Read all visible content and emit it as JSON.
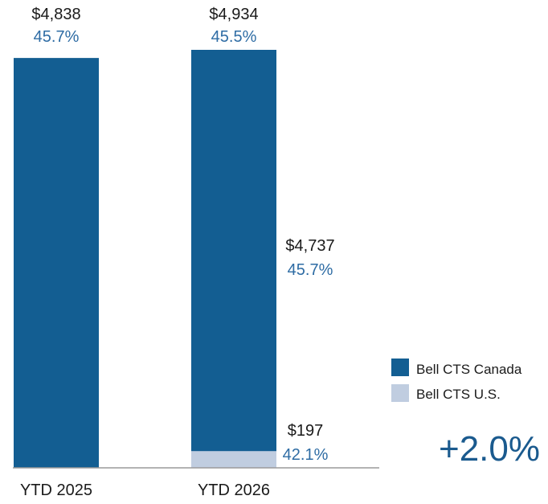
{
  "chart_data": {
    "type": "bar",
    "stacked": true,
    "categories": [
      "YTD 2025",
      "YTD 2026"
    ],
    "series": [
      {
        "name": "Bell CTS Canada",
        "color": "#135e92",
        "values": [
          4838,
          4737
        ],
        "pct_labels": [
          "",
          "45.7%"
        ]
      },
      {
        "name": "Bell CTS U.S.",
        "color": "#c0cde0",
        "values": [
          0,
          197
        ],
        "pct_labels": [
          "",
          "42.1%"
        ]
      }
    ],
    "totals": [
      {
        "value": "$4,838",
        "pct": "45.7%"
      },
      {
        "value": "$4,934",
        "pct": "45.5%"
      }
    ],
    "segment_labels": [
      {
        "series": 0,
        "category": 1,
        "value": "$4,737",
        "pct": "45.7%"
      },
      {
        "series": 1,
        "category": 1,
        "value": "$197",
        "pct": "42.1%"
      }
    ],
    "legend": {
      "position": "bottom-right"
    },
    "annotation": "+2.0%",
    "ylim": [
      0,
      4934
    ],
    "grid": false
  }
}
